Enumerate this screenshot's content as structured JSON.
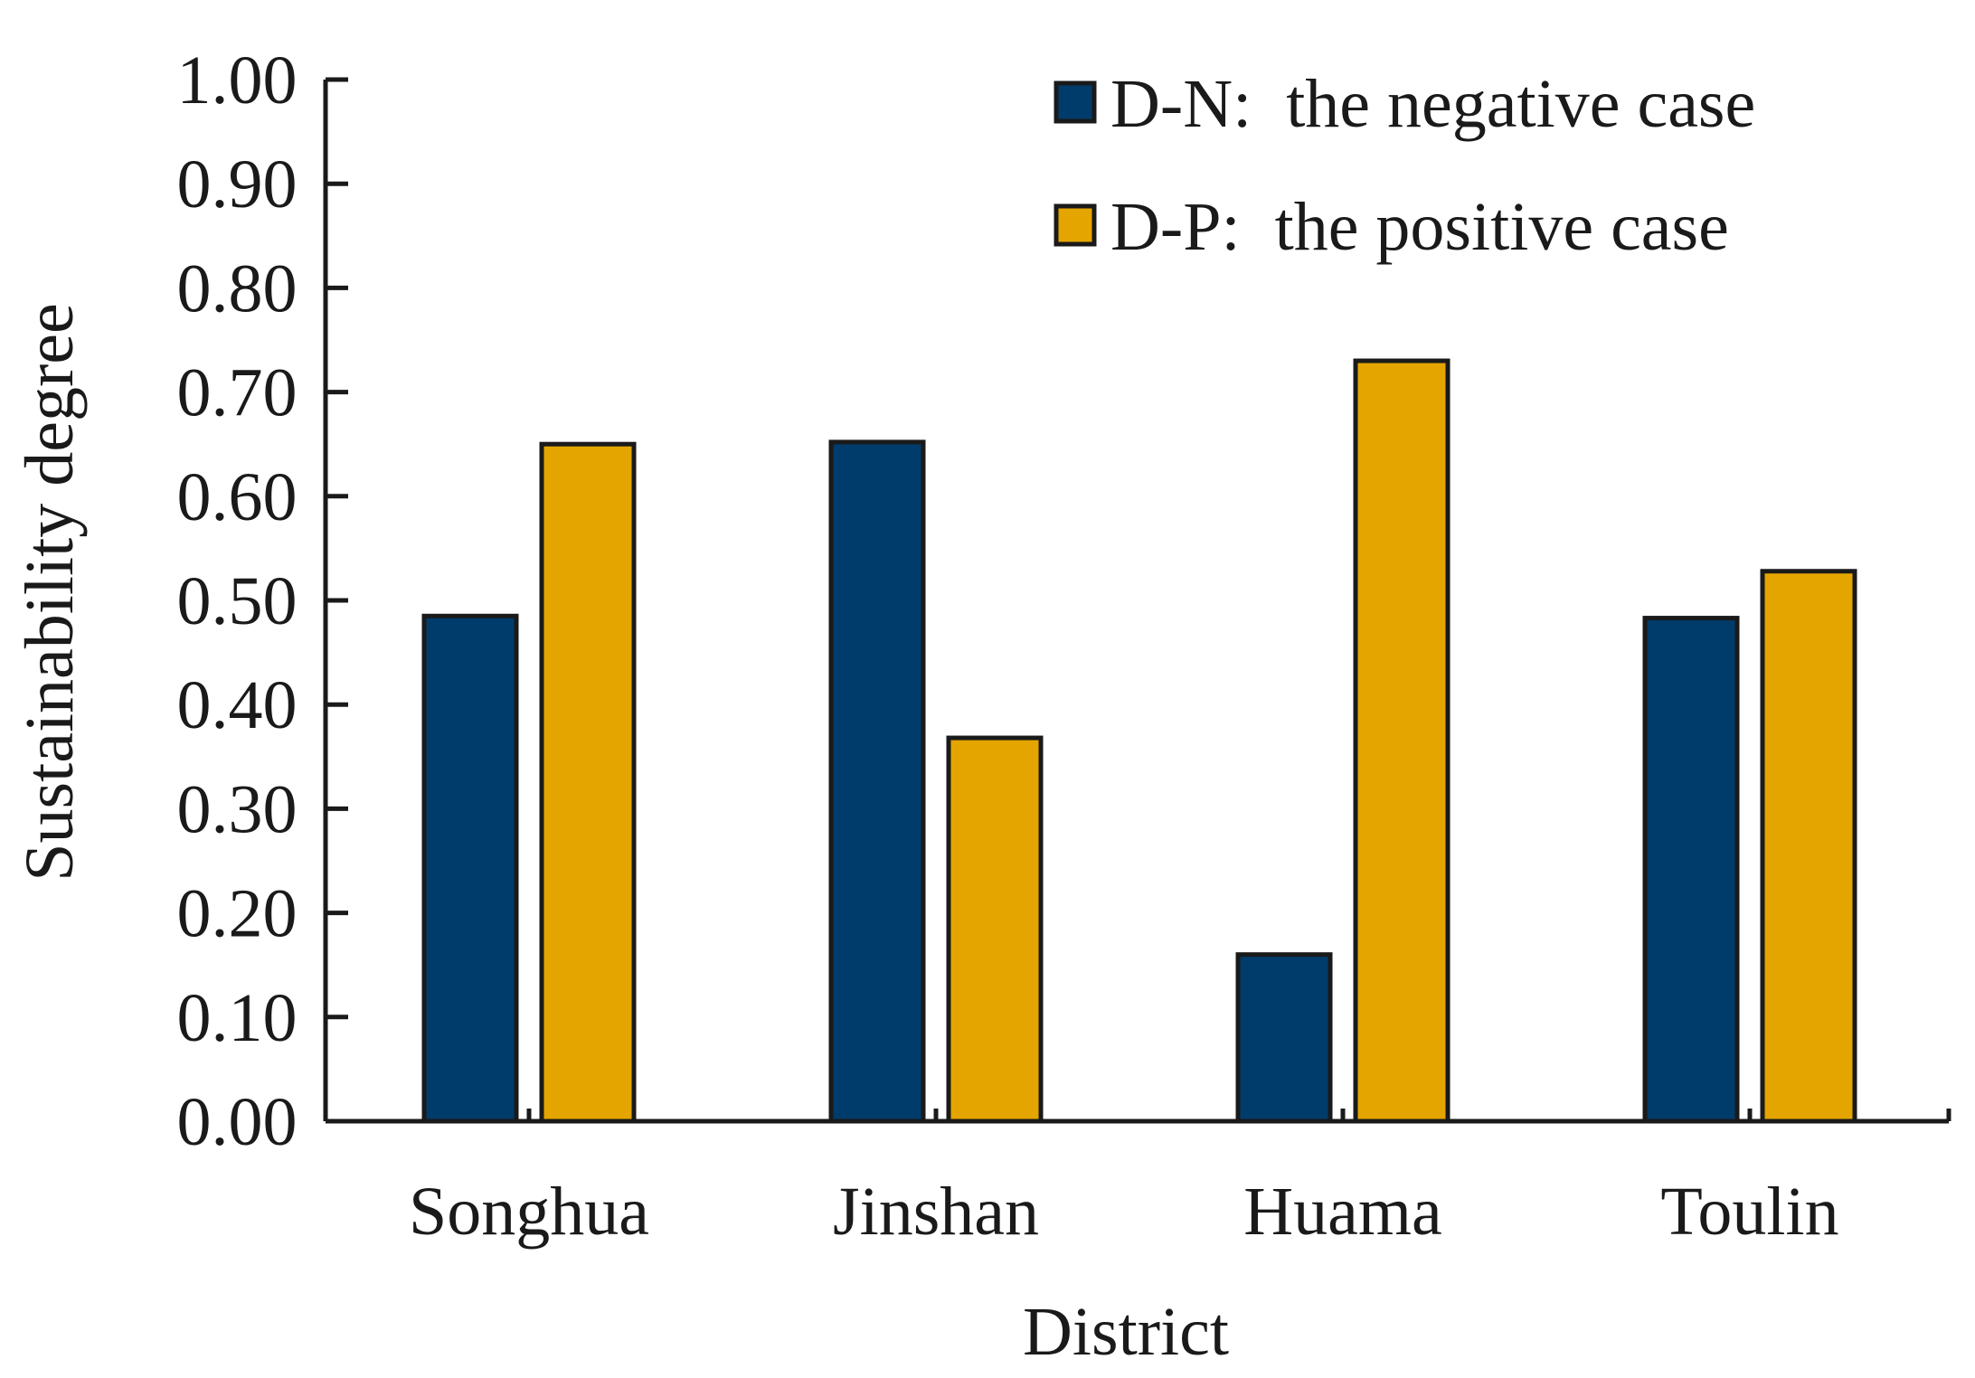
{
  "chart_data": {
    "type": "bar",
    "title": "",
    "xlabel": "District",
    "ylabel": "Sustainability degree",
    "categories": [
      "Songhua",
      "Jinshan",
      "Huama",
      "Toulin"
    ],
    "series": [
      {
        "name": "D-N:  the negative case",
        "color": "#003c6b",
        "values": [
          0.485,
          0.652,
          0.16,
          0.483
        ]
      },
      {
        "name": "D-P:  the positive case",
        "color": "#e5a500",
        "values": [
          0.65,
          0.368,
          0.73,
          0.528
        ]
      }
    ],
    "ylim": [
      0,
      1.0
    ],
    "yticks": [
      "0.00",
      "0.10",
      "0.20",
      "0.30",
      "0.40",
      "0.50",
      "0.60",
      "0.70",
      "0.80",
      "0.90",
      "1.00"
    ],
    "grid": false,
    "legend_position": "top-right"
  }
}
